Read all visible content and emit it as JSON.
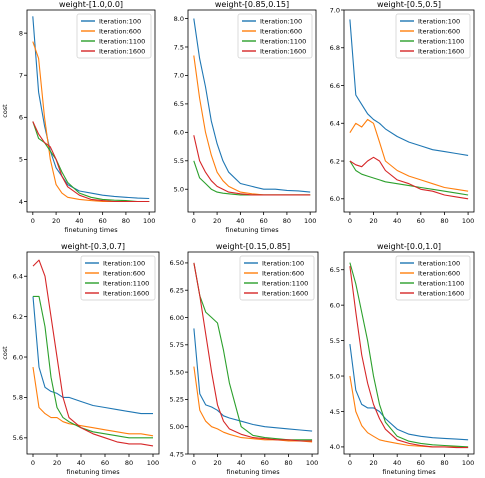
{
  "chart_data": [
    {
      "type": "line",
      "title": "weight-[1.0,0.0]",
      "xlabel": "finetuning times",
      "ylabel": "cost",
      "xlim": [
        -5,
        105
      ],
      "ylim": [
        3.75,
        8.55
      ],
      "xticks": [
        0,
        20,
        40,
        60,
        80,
        100
      ],
      "yticks": [
        4,
        5,
        6,
        7,
        8
      ],
      "legend": "top-right",
      "x": [
        0,
        5,
        10,
        15,
        20,
        25,
        30,
        40,
        50,
        60,
        70,
        80,
        90,
        100
      ],
      "series": [
        {
          "name": "Iteration:100",
          "color": "#1f77b4",
          "values": [
            8.4,
            6.6,
            5.8,
            5.2,
            4.8,
            4.6,
            4.4,
            4.25,
            4.2,
            4.15,
            4.12,
            4.1,
            4.08,
            4.07
          ]
        },
        {
          "name": "Iteration:600",
          "color": "#ff7f0e",
          "values": [
            7.8,
            7.4,
            6.0,
            5.0,
            4.4,
            4.2,
            4.1,
            4.05,
            4.02,
            4.0,
            4.0,
            4.0,
            4.0,
            4.0
          ]
        },
        {
          "name": "Iteration:1100",
          "color": "#2ca02c",
          "values": [
            5.9,
            5.5,
            5.4,
            5.2,
            5.0,
            4.7,
            4.45,
            4.2,
            4.1,
            4.05,
            4.03,
            4.02,
            4.0,
            4.0
          ]
        },
        {
          "name": "Iteration:1600",
          "color": "#d62728",
          "values": [
            5.9,
            5.6,
            5.4,
            5.3,
            5.0,
            4.6,
            4.35,
            4.15,
            4.05,
            4.02,
            4.0,
            4.0,
            4.0,
            4.0
          ]
        }
      ]
    },
    {
      "type": "line",
      "title": "weight-[0.85,0.15]",
      "xlabel": "finetuning times",
      "ylabel": "",
      "xlim": [
        -5,
        105
      ],
      "ylim": [
        4.6,
        8.15
      ],
      "xticks": [
        0,
        20,
        40,
        60,
        80,
        100
      ],
      "yticks": [
        5.0,
        5.5,
        6.0,
        6.5,
        7.0,
        7.5,
        8.0
      ],
      "legend": "top-right",
      "x": [
        0,
        5,
        10,
        15,
        20,
        25,
        30,
        40,
        50,
        60,
        70,
        80,
        90,
        100
      ],
      "series": [
        {
          "name": "Iteration:100",
          "color": "#1f77b4",
          "values": [
            8.0,
            7.3,
            6.8,
            6.2,
            5.8,
            5.5,
            5.3,
            5.1,
            5.05,
            5.0,
            5.0,
            4.98,
            4.97,
            4.95
          ]
        },
        {
          "name": "Iteration:600",
          "color": "#ff7f0e",
          "values": [
            7.35,
            6.6,
            6.0,
            5.6,
            5.3,
            5.15,
            5.05,
            4.95,
            4.92,
            4.9,
            4.9,
            4.9,
            4.9,
            4.9
          ]
        },
        {
          "name": "Iteration:1100",
          "color": "#2ca02c",
          "values": [
            5.5,
            5.2,
            5.1,
            5.0,
            4.95,
            4.93,
            4.92,
            4.9,
            4.9,
            4.9,
            4.9,
            4.9,
            4.9,
            4.9
          ]
        },
        {
          "name": "Iteration:1600",
          "color": "#d62728",
          "values": [
            5.95,
            5.5,
            5.3,
            5.15,
            5.05,
            5.0,
            4.95,
            4.92,
            4.9,
            4.9,
            4.9,
            4.9,
            4.9,
            4.9
          ]
        }
      ]
    },
    {
      "type": "line",
      "title": "weight-[0.5,0.5]",
      "xlabel": "",
      "ylabel": "",
      "xlim": [
        -5,
        105
      ],
      "ylim": [
        5.93,
        7.0
      ],
      "xticks": [
        0,
        20,
        40,
        60,
        80,
        100
      ],
      "yticks": [
        6.0,
        6.2,
        6.4,
        6.6,
        6.8,
        7.0
      ],
      "legend": "top-right",
      "x": [
        0,
        5,
        10,
        15,
        20,
        25,
        30,
        40,
        50,
        60,
        70,
        80,
        90,
        100
      ],
      "series": [
        {
          "name": "Iteration:100",
          "color": "#1f77b4",
          "values": [
            6.95,
            6.55,
            6.5,
            6.45,
            6.42,
            6.4,
            6.37,
            6.33,
            6.3,
            6.28,
            6.26,
            6.25,
            6.24,
            6.23
          ]
        },
        {
          "name": "Iteration:600",
          "color": "#ff7f0e",
          "values": [
            6.35,
            6.4,
            6.38,
            6.42,
            6.4,
            6.3,
            6.2,
            6.15,
            6.12,
            6.1,
            6.08,
            6.06,
            6.05,
            6.04
          ]
        },
        {
          "name": "Iteration:1100",
          "color": "#2ca02c",
          "values": [
            6.2,
            6.15,
            6.13,
            6.12,
            6.11,
            6.1,
            6.09,
            6.08,
            6.07,
            6.06,
            6.05,
            6.04,
            6.03,
            6.02
          ]
        },
        {
          "name": "Iteration:1600",
          "color": "#d62728",
          "values": [
            6.2,
            6.18,
            6.17,
            6.2,
            6.22,
            6.2,
            6.15,
            6.1,
            6.08,
            6.05,
            6.04,
            6.02,
            6.01,
            6.0
          ]
        }
      ]
    },
    {
      "type": "line",
      "title": "weight-[0.3,0.7]",
      "xlabel": "finetuning times",
      "ylabel": "cost",
      "xlim": [
        -5,
        105
      ],
      "ylim": [
        5.52,
        6.52
      ],
      "xticks": [
        0,
        20,
        40,
        60,
        80,
        100
      ],
      "yticks": [
        5.6,
        5.8,
        6.0,
        6.2,
        6.4
      ],
      "legend": "top-right",
      "x": [
        0,
        5,
        10,
        15,
        20,
        25,
        30,
        40,
        50,
        60,
        70,
        80,
        90,
        100
      ],
      "series": [
        {
          "name": "Iteration:100",
          "color": "#1f77b4",
          "values": [
            6.3,
            5.95,
            5.85,
            5.83,
            5.82,
            5.8,
            5.8,
            5.78,
            5.76,
            5.75,
            5.74,
            5.73,
            5.72,
            5.72
          ]
        },
        {
          "name": "Iteration:600",
          "color": "#ff7f0e",
          "values": [
            5.95,
            5.75,
            5.72,
            5.7,
            5.7,
            5.68,
            5.67,
            5.66,
            5.65,
            5.64,
            5.63,
            5.62,
            5.62,
            5.61
          ]
        },
        {
          "name": "Iteration:1100",
          "color": "#2ca02c",
          "values": [
            6.3,
            6.3,
            6.15,
            5.9,
            5.75,
            5.7,
            5.68,
            5.65,
            5.63,
            5.62,
            5.61,
            5.6,
            5.6,
            5.6
          ]
        },
        {
          "name": "Iteration:1600",
          "color": "#d62728",
          "values": [
            6.45,
            6.48,
            6.4,
            6.2,
            6.0,
            5.8,
            5.7,
            5.65,
            5.62,
            5.6,
            5.58,
            5.57,
            5.57,
            5.56
          ]
        }
      ]
    },
    {
      "type": "line",
      "title": "weight-[0.15,0.85]",
      "xlabel": "finetuning times",
      "ylabel": "",
      "xlim": [
        -5,
        105
      ],
      "ylim": [
        4.75,
        6.6
      ],
      "xticks": [
        0,
        20,
        40,
        60,
        80,
        100
      ],
      "yticks": [
        4.75,
        5.0,
        5.25,
        5.5,
        5.75,
        6.0,
        6.25,
        6.5
      ],
      "legend": "top-right",
      "x": [
        0,
        5,
        10,
        15,
        20,
        25,
        30,
        40,
        50,
        60,
        70,
        80,
        90,
        100
      ],
      "series": [
        {
          "name": "Iteration:100",
          "color": "#1f77b4",
          "values": [
            5.9,
            5.3,
            5.2,
            5.18,
            5.15,
            5.1,
            5.08,
            5.05,
            5.02,
            5.0,
            4.99,
            4.98,
            4.97,
            4.96
          ]
        },
        {
          "name": "Iteration:600",
          "color": "#ff7f0e",
          "values": [
            5.55,
            5.15,
            5.05,
            5.0,
            4.98,
            4.95,
            4.93,
            4.9,
            4.89,
            4.88,
            4.88,
            4.87,
            4.87,
            4.86
          ]
        },
        {
          "name": "Iteration:1100",
          "color": "#2ca02c",
          "values": [
            6.5,
            6.2,
            6.05,
            6.0,
            5.95,
            5.7,
            5.4,
            5.0,
            4.92,
            4.9,
            4.89,
            4.88,
            4.88,
            4.88
          ]
        },
        {
          "name": "Iteration:1600",
          "color": "#d62728",
          "values": [
            6.5,
            6.2,
            5.85,
            5.5,
            5.2,
            5.05,
            4.98,
            4.93,
            4.9,
            4.89,
            4.88,
            4.88,
            4.87,
            4.87
          ]
        }
      ]
    },
    {
      "type": "line",
      "title": "weight-[0.0,1.0]",
      "xlabel": "finetuning times",
      "ylabel": "",
      "xlim": [
        -5,
        105
      ],
      "ylim": [
        3.9,
        6.75
      ],
      "xticks": [
        0,
        20,
        40,
        60,
        80,
        100
      ],
      "yticks": [
        4.0,
        4.5,
        5.0,
        5.5,
        6.0,
        6.5
      ],
      "legend": "top-right",
      "x": [
        0,
        5,
        10,
        15,
        20,
        25,
        30,
        40,
        50,
        60,
        70,
        80,
        90,
        100
      ],
      "series": [
        {
          "name": "Iteration:100",
          "color": "#1f77b4",
          "values": [
            5.45,
            4.8,
            4.6,
            4.55,
            4.55,
            4.5,
            4.4,
            4.25,
            4.18,
            4.15,
            4.13,
            4.12,
            4.11,
            4.1
          ]
        },
        {
          "name": "Iteration:600",
          "color": "#ff7f0e",
          "values": [
            5.0,
            4.5,
            4.3,
            4.2,
            4.15,
            4.1,
            4.08,
            4.05,
            4.02,
            4.01,
            4.0,
            4.0,
            4.0,
            4.0
          ]
        },
        {
          "name": "Iteration:1100",
          "color": "#2ca02c",
          "values": [
            6.6,
            6.3,
            5.9,
            5.5,
            5.0,
            4.6,
            4.35,
            4.15,
            4.08,
            4.05,
            4.03,
            4.02,
            4.01,
            4.0
          ]
        },
        {
          "name": "Iteration:1600",
          "color": "#d62728",
          "values": [
            6.55,
            5.9,
            5.3,
            4.9,
            4.6,
            4.4,
            4.25,
            4.1,
            4.05,
            4.02,
            4.0,
            4.0,
            3.99,
            3.99
          ]
        }
      ]
    }
  ]
}
